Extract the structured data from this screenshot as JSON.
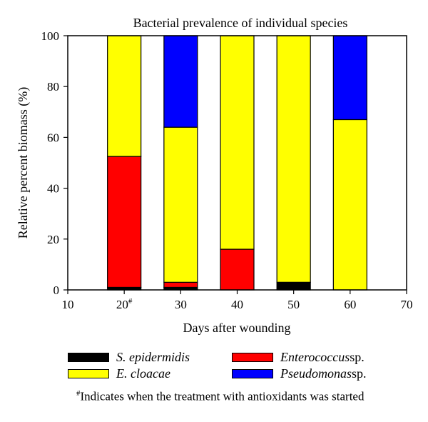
{
  "chart_data": {
    "type": "bar",
    "stacked": true,
    "title": "Bacterial prevalence of individual species",
    "xlabel": "Days after wounding",
    "ylabel": "Relative percent biomass (%)",
    "xlim": [
      10,
      70
    ],
    "ylim": [
      0,
      100
    ],
    "xticks": [
      "10",
      "20",
      "30",
      "40",
      "50",
      "60",
      "70"
    ],
    "yticks": [
      "0",
      "20",
      "40",
      "60",
      "80",
      "100"
    ],
    "x_marker": {
      "x": "20",
      "mark": "#"
    },
    "x": [
      20,
      30,
      40,
      50,
      60
    ],
    "series": [
      {
        "name": "S. epidermidis",
        "name_italic": "S. epidermidis",
        "name_suffix": "",
        "color": "#000000",
        "values": [
          1,
          1,
          0,
          3,
          0
        ]
      },
      {
        "name": "Enterococcus sp.",
        "name_italic": "Enterococcus",
        "name_suffix": " sp.",
        "color": "#ff0000",
        "values": [
          51.5,
          2,
          16,
          0,
          0
        ]
      },
      {
        "name": "E. cloacae",
        "name_italic": "E. cloacae",
        "name_suffix": "",
        "color": "#ffff00",
        "values": [
          47.5,
          61,
          84,
          97,
          67
        ]
      },
      {
        "name": "Pseudomonas sp.",
        "name_italic": "Pseudomonas",
        "name_suffix": " sp.",
        "color": "#0000ff",
        "values": [
          0,
          36,
          0,
          0,
          33
        ]
      }
    ],
    "grid": false,
    "legend_position": "bottom",
    "footnote": {
      "mark": "#",
      "text": "Indicates when the treatment with antioxidants was started"
    }
  }
}
